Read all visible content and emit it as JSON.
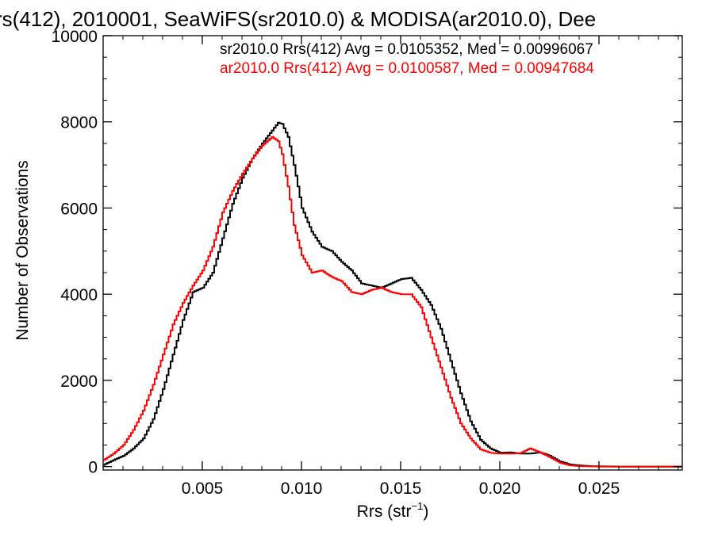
{
  "chart_data": {
    "type": "line",
    "title": "rs(412), 2010001, SeaWiFS(sr2010.0) & MODISA(ar2010.0), Dee",
    "xlabel": "Rrs (str",
    "xlabel_sup": "−1",
    "xlabel_close": ")",
    "ylabel": "Number of Observations",
    "xlim": [
      0.0,
      0.0292
    ],
    "ylim": [
      -80,
      10000
    ],
    "xticks": [
      0.005,
      0.01,
      0.015,
      0.02,
      0.025
    ],
    "xtick_labels": [
      "0.005",
      "0.010",
      "0.015",
      "0.020",
      "0.025"
    ],
    "yticks": [
      0,
      2000,
      4000,
      6000,
      8000,
      10000
    ],
    "ytick_labels": [
      "0",
      "2000",
      "4000",
      "6000",
      "8000",
      "10000"
    ],
    "grid": false,
    "legend_position": "top-right",
    "series": [
      {
        "name": "sr2010.0 Rrs(412) Avg = 0.0105352, Med = 0.00996067",
        "color": "#000000",
        "x": [
          0.0,
          0.0005,
          0.001,
          0.0015,
          0.002,
          0.0025,
          0.003,
          0.0035,
          0.004,
          0.0045,
          0.005,
          0.0055,
          0.006,
          0.0065,
          0.007,
          0.0075,
          0.008,
          0.0085,
          0.0088,
          0.009,
          0.0093,
          0.0096,
          0.01,
          0.0105,
          0.011,
          0.0115,
          0.012,
          0.0125,
          0.013,
          0.0135,
          0.014,
          0.0145,
          0.015,
          0.0155,
          0.016,
          0.0165,
          0.017,
          0.0175,
          0.018,
          0.0185,
          0.019,
          0.0195,
          0.02,
          0.0205,
          0.021,
          0.0215,
          0.022,
          0.0225,
          0.023,
          0.0235,
          0.024,
          0.0245,
          0.025,
          0.026,
          0.027,
          0.028,
          0.0292
        ],
        "values": [
          40,
          150,
          250,
          420,
          650,
          1100,
          1800,
          2600,
          3400,
          4050,
          4150,
          4500,
          5300,
          6100,
          6700,
          7150,
          7500,
          7800,
          7980,
          7950,
          7650,
          7000,
          6000,
          5450,
          5100,
          5000,
          4750,
          4550,
          4250,
          4200,
          4150,
          4250,
          4350,
          4380,
          4100,
          3750,
          3200,
          2450,
          1700,
          1050,
          620,
          420,
          320,
          330,
          300,
          300,
          330,
          250,
          120,
          50,
          25,
          10,
          5,
          0,
          0,
          0,
          0
        ]
      },
      {
        "name": "ar2010.0 Rrs(412) Avg = 0.0100587, Med = 0.00947684",
        "color": "#ff0000",
        "x": [
          0.0,
          0.0005,
          0.001,
          0.0015,
          0.002,
          0.0025,
          0.003,
          0.0035,
          0.004,
          0.0045,
          0.005,
          0.0055,
          0.006,
          0.0065,
          0.007,
          0.0075,
          0.008,
          0.0085,
          0.0088,
          0.009,
          0.0093,
          0.0096,
          0.01,
          0.0105,
          0.011,
          0.0115,
          0.012,
          0.0125,
          0.013,
          0.0135,
          0.014,
          0.0145,
          0.015,
          0.0155,
          0.016,
          0.0165,
          0.017,
          0.0175,
          0.018,
          0.0185,
          0.019,
          0.0195,
          0.02,
          0.0205,
          0.021,
          0.0215,
          0.022,
          0.0225,
          0.023,
          0.0235,
          0.024,
          0.0245,
          0.025,
          0.026,
          0.027,
          0.028,
          0.0292
        ],
        "values": [
          150,
          300,
          500,
          850,
          1300,
          1900,
          2600,
          3300,
          3800,
          4200,
          4550,
          5100,
          5900,
          6400,
          6800,
          7150,
          7450,
          7650,
          7550,
          7250,
          6500,
          5600,
          4900,
          4500,
          4550,
          4400,
          4300,
          4050,
          4000,
          4100,
          4150,
          4050,
          4000,
          4000,
          3700,
          3000,
          2300,
          1600,
          1000,
          650,
          400,
          320,
          300,
          300,
          310,
          420,
          330,
          220,
          90,
          30,
          10,
          5,
          0,
          0,
          0,
          0,
          0
        ]
      }
    ]
  }
}
